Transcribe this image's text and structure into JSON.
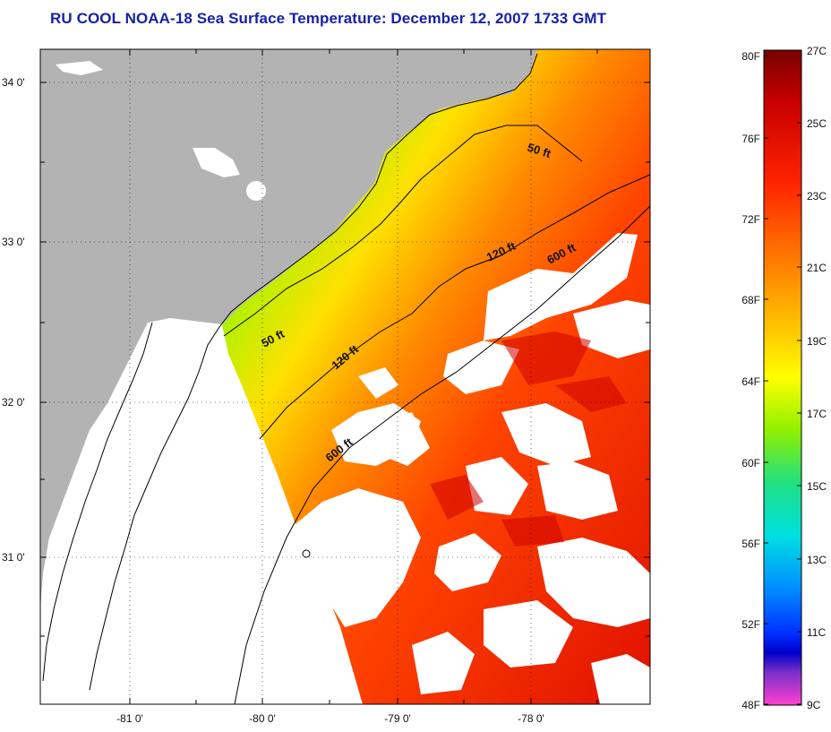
{
  "title": "RU COOL  NOAA-18  Sea Surface Temperature:  December 12, 2007 1733 GMT",
  "map": {
    "lat_labels": [
      "34 0'",
      "33 0'",
      "32 0'",
      "31 0'"
    ],
    "lon_labels": [
      "-81 0'",
      "-80 0'",
      "-79 0'",
      "-78 0'"
    ],
    "contours": [
      "50 ft",
      "50 ft",
      "120 ft",
      "120 ft",
      "600 ft",
      "600 ft"
    ],
    "colors": {
      "land": "#b3b3b3",
      "no_data": "#ffffff",
      "frame": "#000000"
    }
  },
  "colorbar": {
    "fahrenheit_labels": [
      "80F",
      "76F",
      "72F",
      "68F",
      "64F",
      "60F",
      "56F",
      "52F",
      "48F"
    ],
    "celsius_labels": [
      "27C",
      "25C",
      "23C",
      "21C",
      "19C",
      "17C",
      "15C",
      "13C",
      "11C",
      "9C"
    ],
    "colors": [
      "#8b0000",
      "#e00000",
      "#ff3300",
      "#ff7a00",
      "#ffd000",
      "#ffff00",
      "#b8f000",
      "#40e060",
      "#00e0d0",
      "#00b0ff",
      "#0070ff",
      "#0000e0",
      "#6030c0",
      "#c040d0",
      "#ff40d0"
    ]
  }
}
